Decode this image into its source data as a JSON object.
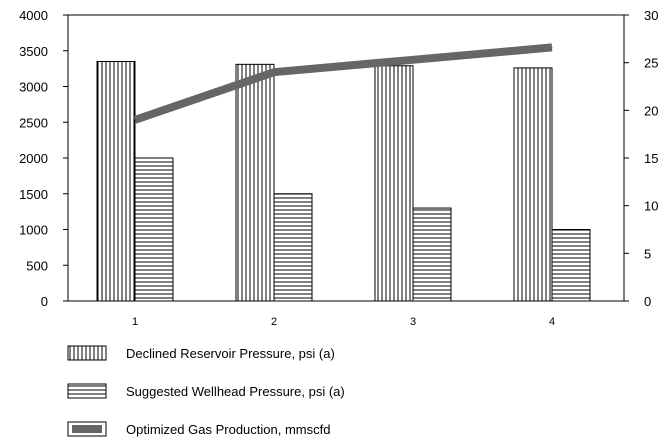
{
  "chart_data": {
    "type": "bar",
    "categories": [
      "1",
      "2",
      "3",
      "4"
    ],
    "series": [
      {
        "name": "Declined Reservoir Pressure, psi (a)",
        "type": "bar",
        "axis": "left",
        "pattern": "vertical-lines",
        "values": [
          3350,
          3310,
          3290,
          3260
        ]
      },
      {
        "name": "Suggested Wellhead Pressure, psi (a)",
        "type": "bar",
        "axis": "left",
        "pattern": "horizontal-lines",
        "values": [
          2000,
          1500,
          1300,
          1000
        ]
      },
      {
        "name": "Optimized Gas Production, mmscfd",
        "type": "line",
        "axis": "right",
        "color": "#666666",
        "values": [
          19,
          24,
          25.3,
          26.6
        ]
      }
    ],
    "y_left": {
      "ylim": [
        0,
        4000
      ],
      "ticks": [
        "0",
        "500",
        "1000",
        "1500",
        "2000",
        "2500",
        "3000",
        "3500",
        "4000"
      ]
    },
    "y_right": {
      "ylim": [
        0,
        30
      ],
      "ticks": [
        "0",
        "5",
        "10",
        "15",
        "20",
        "25",
        "30"
      ]
    },
    "grid": false,
    "legend_position": "bottom-left",
    "title": "",
    "xlabel": "",
    "ylabel": ""
  }
}
